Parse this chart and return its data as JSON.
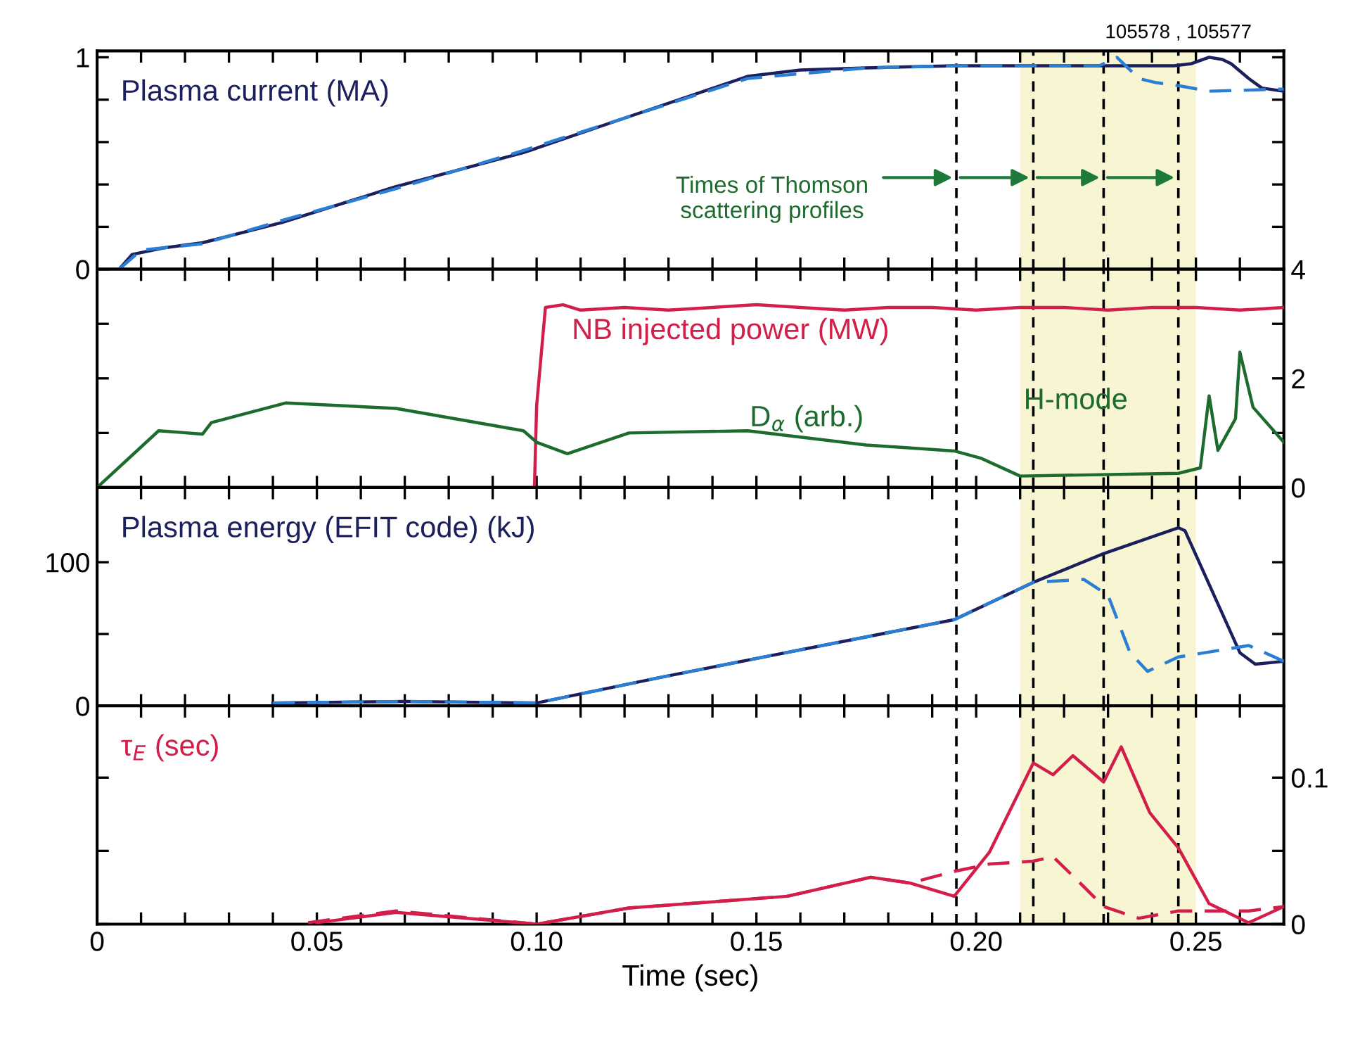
{
  "chart_data": [
    {
      "type": "line",
      "title": "Plasma current (MA)",
      "annotations": [
        "Times of Thomson\nscattering profiles",
        "105578 , 105577"
      ],
      "xlim": [
        0,
        0.27
      ],
      "xticks": [
        {
          "value": 0,
          "label": null
        },
        {
          "value": 0.01,
          "label": null
        },
        {
          "value": 0.02,
          "label": null
        },
        {
          "value": 0.03,
          "label": null
        },
        {
          "value": 0.04,
          "label": null
        },
        {
          "value": 0.05,
          "label": null
        },
        {
          "value": 0.06,
          "label": null
        },
        {
          "value": 0.07,
          "label": null
        },
        {
          "value": 0.08,
          "label": null
        },
        {
          "value": 0.09,
          "label": null
        },
        {
          "value": 0.1,
          "label": null
        },
        {
          "value": 0.11,
          "label": null
        },
        {
          "value": 0.12,
          "label": null
        },
        {
          "value": 0.13,
          "label": null
        },
        {
          "value": 0.14,
          "label": null
        },
        {
          "value": 0.15,
          "label": null
        },
        {
          "value": 0.16,
          "label": null
        },
        {
          "value": 0.17,
          "label": null
        },
        {
          "value": 0.18,
          "label": null
        },
        {
          "value": 0.19,
          "label": null
        },
        {
          "value": 0.2,
          "label": null
        },
        {
          "value": 0.21,
          "label": null
        },
        {
          "value": 0.22,
          "label": null
        },
        {
          "value": 0.23,
          "label": null
        },
        {
          "value": 0.24,
          "label": null
        },
        {
          "value": 0.25,
          "label": null
        },
        {
          "value": 0.26,
          "label": null
        }
      ],
      "ylim": [
        0,
        1.03
      ],
      "yticks": [
        0,
        {
          "value": 0.2,
          "label": null
        },
        {
          "value": 0.4,
          "label": null
        },
        {
          "value": 0.6,
          "label": null
        },
        {
          "value": 0.8,
          "label": null
        },
        1
      ],
      "tick_labels": "y",
      "grid": false,
      "legend": false,
      "series": [
        {
          "color": "#1c1f5e",
          "line_style": "solid",
          "x": [
            0.005,
            0.008,
            0.015,
            0.024,
            0.042,
            0.068,
            0.097,
            0.121,
            0.148,
            0.16,
            0.175,
            0.195,
            0.228,
            0.245,
            0.249,
            0.253,
            0.256,
            0.258,
            0.262,
            0.265,
            0.27
          ],
          "values": [
            0,
            0.07,
            0.1,
            0.125,
            0.22,
            0.39,
            0.55,
            0.72,
            0.91,
            0.94,
            0.95,
            0.96,
            0.96,
            0.96,
            0.97,
            1.0,
            0.99,
            0.97,
            0.9,
            0.855,
            0.84
          ]
        },
        {
          "color": "#2a7fd4",
          "line_style": "dashed",
          "x": [
            0.005,
            0.01,
            0.024,
            0.042,
            0.068,
            0.097,
            0.121,
            0.148,
            0.175,
            0.195,
            0.228,
            0.232,
            0.234,
            0.237,
            0.241,
            0.245,
            0.253,
            0.27
          ],
          "values": [
            0,
            0.09,
            0.12,
            0.23,
            0.38,
            0.56,
            0.72,
            0.9,
            0.95,
            0.96,
            0.96,
            1.0,
            0.96,
            0.9,
            0.88,
            0.87,
            0.84,
            0.85
          ]
        }
      ],
      "ref_lines": [
        {
          "axis": "x",
          "value": 0.1955,
          "color": "#000000",
          "line_style": "dashed"
        },
        {
          "axis": "x",
          "value": 0.213,
          "color": "#000000",
          "line_style": "dashed"
        },
        {
          "axis": "x",
          "value": 0.229,
          "color": "#000000",
          "line_style": "dashed"
        },
        {
          "axis": "x",
          "value": 0.246,
          "color": "#000000",
          "line_style": "dashed"
        }
      ],
      "bands": [
        {
          "axis": "x",
          "from": 0.21,
          "to": 0.25,
          "color": "#f7f5d2"
        }
      ]
    },
    {
      "type": "line",
      "xlim": [
        0,
        0.27
      ],
      "xticks": [
        {
          "value": 0,
          "label": null
        },
        {
          "value": 0.01,
          "label": null
        },
        {
          "value": 0.02,
          "label": null
        },
        {
          "value": 0.03,
          "label": null
        },
        {
          "value": 0.04,
          "label": null
        },
        {
          "value": 0.05,
          "label": null
        },
        {
          "value": 0.06,
          "label": null
        },
        {
          "value": 0.07,
          "label": null
        },
        {
          "value": 0.08,
          "label": null
        },
        {
          "value": 0.09,
          "label": null
        },
        {
          "value": 0.1,
          "label": null
        },
        {
          "value": 0.11,
          "label": null
        },
        {
          "value": 0.12,
          "label": null
        },
        {
          "value": 0.13,
          "label": null
        },
        {
          "value": 0.14,
          "label": null
        },
        {
          "value": 0.15,
          "label": null
        },
        {
          "value": 0.16,
          "label": null
        },
        {
          "value": 0.17,
          "label": null
        },
        {
          "value": 0.18,
          "label": null
        },
        {
          "value": 0.19,
          "label": null
        },
        {
          "value": 0.2,
          "label": null
        },
        {
          "value": 0.21,
          "label": null
        },
        {
          "value": 0.22,
          "label": null
        },
        {
          "value": 0.23,
          "label": null
        },
        {
          "value": 0.24,
          "label": null
        },
        {
          "value": 0.25,
          "label": null
        },
        {
          "value": 0.26,
          "label": null
        }
      ],
      "y2lim": [
        0,
        4
      ],
      "y2ticks": [
        0,
        {
          "value": 1,
          "label": null
        },
        2,
        {
          "value": 3,
          "label": null
        },
        4
      ],
      "tick_labels": "y",
      "grid": false,
      "legend": false,
      "series": [
        {
          "name": "NB injected power (MW)",
          "axis": "y2",
          "color": "#d21f4a",
          "line_style": "solid",
          "x": [
            0.0995,
            0.1,
            0.102,
            0.106,
            0.11,
            0.12,
            0.13,
            0.14,
            0.15,
            0.16,
            0.17,
            0.18,
            0.19,
            0.2,
            0.21,
            0.22,
            0.23,
            0.24,
            0.25,
            0.26,
            0.27
          ],
          "values": [
            0,
            1.5,
            3.3,
            3.35,
            3.25,
            3.3,
            3.25,
            3.3,
            3.35,
            3.3,
            3.25,
            3.3,
            3.3,
            3.25,
            3.3,
            3.3,
            3.25,
            3.3,
            3.3,
            3.25,
            3.3
          ]
        },
        {
          "name": "D$_{α}$ (arb.)",
          "axis": "y2",
          "color": "#1e6b2e",
          "line_style": "solid",
          "x": [
            0.0,
            0.014,
            0.024,
            0.026,
            0.043,
            0.068,
            0.097,
            0.1,
            0.107,
            0.121,
            0.148,
            0.175,
            0.195,
            0.201,
            0.21,
            0.246,
            0.251,
            0.253,
            0.255,
            0.259,
            0.26,
            0.263,
            0.27
          ],
          "values": [
            0,
            1.04,
            0.98,
            1.19,
            1.55,
            1.45,
            1.04,
            0.83,
            0.62,
            1.0,
            1.04,
            0.78,
            0.67,
            0.54,
            0.21,
            0.26,
            0.36,
            1.68,
            0.68,
            1.26,
            2.48,
            1.47,
            0.83
          ]
        }
      ],
      "ref_lines": [
        {
          "axis": "x",
          "value": 0.1955,
          "color": "#000000",
          "line_style": "dashed"
        },
        {
          "axis": "x",
          "value": 0.213,
          "color": "#000000",
          "line_style": "dashed"
        },
        {
          "axis": "x",
          "value": 0.229,
          "color": "#000000",
          "line_style": "dashed"
        },
        {
          "axis": "x",
          "value": 0.246,
          "color": "#000000",
          "line_style": "dashed"
        }
      ],
      "bands": [
        {
          "axis": "x",
          "from": 0.21,
          "to": 0.25,
          "color": "#f7f5d2",
          "label": "H-mode"
        }
      ]
    },
    {
      "type": "line",
      "title": "Plasma energy (EFIT code) (kJ)",
      "xlim": [
        0,
        0.27
      ],
      "xticks": [
        {
          "value": 0,
          "label": null
        },
        {
          "value": 0.01,
          "label": null
        },
        {
          "value": 0.02,
          "label": null
        },
        {
          "value": 0.03,
          "label": null
        },
        {
          "value": 0.04,
          "label": null
        },
        {
          "value": 0.05,
          "label": null
        },
        {
          "value": 0.06,
          "label": null
        },
        {
          "value": 0.07,
          "label": null
        },
        {
          "value": 0.08,
          "label": null
        },
        {
          "value": 0.09,
          "label": null
        },
        {
          "value": 0.1,
          "label": null
        },
        {
          "value": 0.11,
          "label": null
        },
        {
          "value": 0.12,
          "label": null
        },
        {
          "value": 0.13,
          "label": null
        },
        {
          "value": 0.14,
          "label": null
        },
        {
          "value": 0.15,
          "label": null
        },
        {
          "value": 0.16,
          "label": null
        },
        {
          "value": 0.17,
          "label": null
        },
        {
          "value": 0.18,
          "label": null
        },
        {
          "value": 0.19,
          "label": null
        },
        {
          "value": 0.2,
          "label": null
        },
        {
          "value": 0.21,
          "label": null
        },
        {
          "value": 0.22,
          "label": null
        },
        {
          "value": 0.23,
          "label": null
        },
        {
          "value": 0.24,
          "label": null
        },
        {
          "value": 0.25,
          "label": null
        },
        {
          "value": 0.26,
          "label": null
        }
      ],
      "ylim": [
        0,
        152
      ],
      "yticks": [
        0,
        {
          "value": 50,
          "label": null
        },
        100
      ],
      "tick_labels": "y",
      "grid": false,
      "legend": false,
      "series": [
        {
          "color": "#1c1f5e",
          "line_style": "solid",
          "x": [
            0.04,
            0.07,
            0.1,
            0.1285,
            0.15,
            0.175,
            0.195,
            0.213,
            0.229,
            0.246,
            0.2475,
            0.26,
            0.2635,
            0.27
          ],
          "values": [
            2,
            3,
            2,
            20,
            33,
            48,
            60,
            86,
            106,
            124,
            122,
            37,
            29,
            31
          ]
        },
        {
          "color": "#2a7fd4",
          "line_style": "dashed",
          "x": [
            0.04,
            0.07,
            0.1,
            0.1285,
            0.15,
            0.175,
            0.195,
            0.213,
            0.2245,
            0.23,
            0.235,
            0.239,
            0.246,
            0.262,
            0.27
          ],
          "values": [
            2,
            3,
            2,
            20,
            33,
            48,
            60,
            86,
            88,
            77,
            37,
            24,
            34,
            42,
            31
          ]
        }
      ],
      "ref_lines": [
        {
          "axis": "x",
          "value": 0.1955,
          "color": "#000000",
          "line_style": "dashed"
        },
        {
          "axis": "x",
          "value": 0.213,
          "color": "#000000",
          "line_style": "dashed"
        },
        {
          "axis": "x",
          "value": 0.229,
          "color": "#000000",
          "line_style": "dashed"
        },
        {
          "axis": "x",
          "value": 0.246,
          "color": "#000000",
          "line_style": "dashed"
        }
      ],
      "bands": [
        {
          "axis": "x",
          "from": 0.21,
          "to": 0.25,
          "color": "#f7f5d2"
        }
      ]
    },
    {
      "type": "line",
      "title": "τ$_{E}$ (sec)",
      "xlabel": "Time (sec)",
      "xlim": [
        0,
        0.27
      ],
      "xticks": [
        0,
        {
          "value": 0.01,
          "label": null
        },
        {
          "value": 0.02,
          "label": null
        },
        {
          "value": 0.03,
          "label": null
        },
        {
          "value": 0.04,
          "label": null
        },
        0.05,
        {
          "value": 0.06,
          "label": null
        },
        {
          "value": 0.07,
          "label": null
        },
        {
          "value": 0.08,
          "label": null
        },
        {
          "value": 0.09,
          "label": null
        },
        {
          "value": 0.1,
          "label": "0.10"
        },
        {
          "value": 0.11,
          "label": null
        },
        {
          "value": 0.12,
          "label": null
        },
        {
          "value": 0.13,
          "label": null
        },
        {
          "value": 0.14,
          "label": null
        },
        0.15,
        {
          "value": 0.16,
          "label": null
        },
        {
          "value": 0.17,
          "label": null
        },
        {
          "value": 0.18,
          "label": null
        },
        {
          "value": 0.19,
          "label": null
        },
        {
          "value": 0.2,
          "label": "0.20"
        },
        {
          "value": 0.21,
          "label": null
        },
        {
          "value": 0.22,
          "label": null
        },
        {
          "value": 0.23,
          "label": null
        },
        {
          "value": 0.24,
          "label": null
        },
        0.25,
        {
          "value": 0.26,
          "label": null
        }
      ],
      "y2lim": [
        0,
        0.149
      ],
      "y2ticks": [
        0,
        {
          "value": 0.05,
          "label": null
        },
        0.1
      ],
      "grid": false,
      "legend": false,
      "series": [
        {
          "axis": "y2",
          "color": "#d21f4a",
          "line_style": "solid",
          "x": [
            0.05,
            0.068,
            0.1,
            0.121,
            0.157,
            0.176,
            0.185,
            0.195,
            0.203,
            0.213,
            0.2175,
            0.222,
            0.229,
            0.233,
            0.2395,
            0.246,
            0.253,
            0.262,
            0.27
          ],
          "values": [
            0.001,
            0.008,
            0,
            0.011,
            0.019,
            0.032,
            0.028,
            0.019,
            0.049,
            0.11,
            0.102,
            0.115,
            0.097,
            0.121,
            0.076,
            0.052,
            0.014,
            0.001,
            0.012
          ]
        },
        {
          "axis": "y2",
          "color": "#d21f4a",
          "line_style": "dashed",
          "x": [
            0.048,
            0.068,
            0.1,
            0.121,
            0.157,
            0.176,
            0.185,
            0.195,
            0.203,
            0.213,
            0.2175,
            0.223,
            0.229,
            0.237,
            0.246,
            0.262,
            0.27
          ],
          "values": [
            0.001,
            0.009,
            0,
            0.011,
            0.019,
            0.032,
            0.028,
            0.036,
            0.041,
            0.043,
            0.046,
            0.03,
            0.012,
            0.004,
            0.009,
            0.009,
            0.012
          ]
        }
      ],
      "ref_lines": [
        {
          "axis": "x",
          "value": 0.1955,
          "color": "#000000",
          "line_style": "dashed"
        },
        {
          "axis": "x",
          "value": 0.213,
          "color": "#000000",
          "line_style": "dashed"
        },
        {
          "axis": "x",
          "value": 0.229,
          "color": "#000000",
          "line_style": "dashed"
        },
        {
          "axis": "x",
          "value": 0.246,
          "color": "#000000",
          "line_style": "dashed"
        }
      ],
      "bands": [
        {
          "axis": "x",
          "from": 0.21,
          "to": 0.25,
          "color": "#f7f5d2"
        }
      ]
    }
  ]
}
